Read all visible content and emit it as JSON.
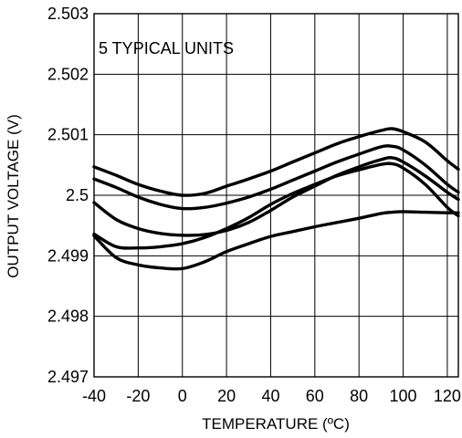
{
  "chart_data": {
    "type": "line",
    "title": "",
    "xlabel": "TEMPERATURE (ºC)",
    "ylabel": "OUTPUT VOLTAGE (V)",
    "annotation": "5 TYPICAL UNITS",
    "xlim": [
      -40,
      125
    ],
    "ylim": [
      2.497,
      2.503
    ],
    "x_ticks": [
      -40,
      -20,
      0,
      20,
      40,
      60,
      80,
      100,
      120
    ],
    "y_ticks": [
      2.497,
      2.498,
      2.499,
      2.5,
      2.501,
      2.502,
      2.503
    ],
    "x_tick_labels": [
      "-40",
      "-20",
      "0",
      "20",
      "40",
      "60",
      "80",
      "100",
      "120"
    ],
    "y_tick_labels": [
      "2.497",
      "2.498",
      "2.499",
      "2.5",
      "2.501",
      "2.502",
      "2.503"
    ],
    "grid": true,
    "line_color": "#000000",
    "series": [
      {
        "x": [
          -40,
          -30,
          -20,
          -10,
          0,
          10,
          20,
          30,
          40,
          50,
          60,
          70,
          80,
          90,
          95,
          100,
          110,
          120,
          125
        ],
        "values": [
          2.50047,
          2.50033,
          2.50018,
          2.50007,
          2.5,
          2.50003,
          2.50015,
          2.50027,
          2.5004,
          2.50055,
          2.5007,
          2.50085,
          2.50097,
          2.50107,
          2.5011,
          2.50105,
          2.50088,
          2.50057,
          2.50043
        ]
      },
      {
        "x": [
          -40,
          -30,
          -20,
          -10,
          0,
          10,
          20,
          30,
          40,
          50,
          60,
          70,
          80,
          90,
          95,
          100,
          110,
          120,
          125
        ],
        "values": [
          2.50027,
          2.50013,
          2.49997,
          2.49985,
          2.49978,
          2.4998,
          2.49987,
          2.49997,
          2.5001,
          2.50025,
          2.5004,
          2.50055,
          2.50068,
          2.5008,
          2.50081,
          2.50075,
          2.5005,
          2.50018,
          2.50005
        ]
      },
      {
        "x": [
          -40,
          -30,
          -20,
          -10,
          0,
          10,
          20,
          30,
          40,
          50,
          60,
          70,
          80,
          90,
          95,
          100,
          110,
          120,
          125
        ],
        "values": [
          2.49988,
          2.4996,
          2.49945,
          2.49937,
          2.49934,
          2.49935,
          2.49942,
          2.49955,
          2.49975,
          2.49997,
          2.50015,
          2.50033,
          2.50047,
          2.50059,
          2.50062,
          2.50055,
          2.50032,
          2.50005,
          2.49993
        ]
      },
      {
        "x": [
          -40,
          -30,
          -20,
          -10,
          0,
          10,
          20,
          30,
          40,
          50,
          60,
          70,
          80,
          90,
          95,
          100,
          110,
          120,
          125
        ],
        "values": [
          2.49936,
          2.49915,
          2.49913,
          2.49915,
          2.4992,
          2.4993,
          2.49945,
          2.49963,
          2.49985,
          2.50003,
          2.50018,
          2.50032,
          2.50042,
          2.50051,
          2.50052,
          2.50045,
          2.50018,
          2.4998,
          2.49966
        ]
      },
      {
        "x": [
          -40,
          -30,
          -20,
          -10,
          0,
          10,
          20,
          30,
          40,
          50,
          60,
          70,
          80,
          90,
          95,
          100,
          110,
          120,
          125
        ],
        "values": [
          2.49933,
          2.49897,
          2.49885,
          2.4988,
          2.49879,
          2.4989,
          2.49907,
          2.4992,
          2.49932,
          2.4994,
          2.49948,
          2.49955,
          2.49962,
          2.4997,
          2.49972,
          2.49973,
          2.49972,
          2.49971,
          2.49971
        ]
      }
    ]
  }
}
